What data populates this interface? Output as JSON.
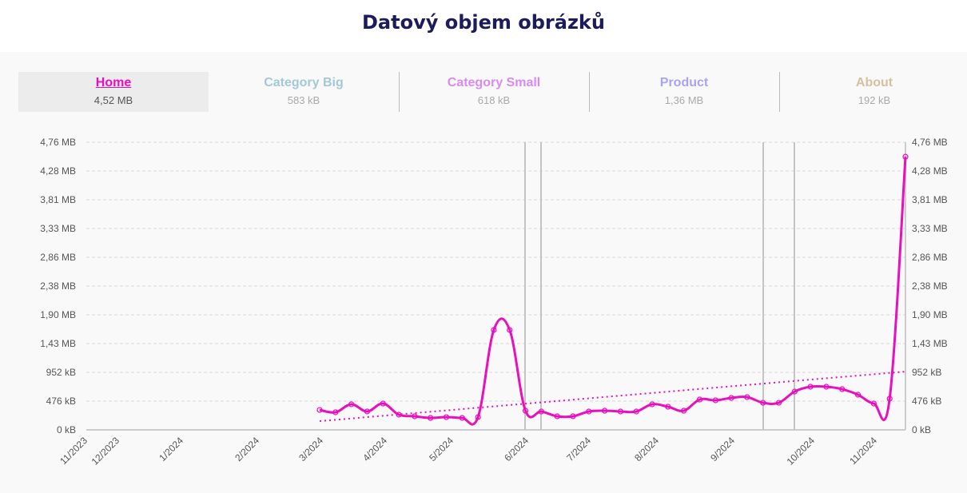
{
  "title": "Datový objem obrázků",
  "tabs": [
    {
      "label": "Home",
      "value": "4,52 MB",
      "color": "#e80fbf",
      "active": true
    },
    {
      "label": "Category Big",
      "value": "583 kB",
      "color": "#a3c9d6",
      "active": false
    },
    {
      "label": "Category Small",
      "value": "618 kB",
      "color": "#d98af2",
      "active": false
    },
    {
      "label": "Product",
      "value": "1,36 MB",
      "color": "#a9a2f7",
      "active": false
    },
    {
      "label": "About",
      "value": "192 kB",
      "color": "#d6c09e",
      "active": false
    }
  ],
  "chart_data": {
    "type": "line",
    "title": "",
    "xlabel": "",
    "ylabel": "",
    "unit": "kB",
    "ylim": [
      0,
      4760
    ],
    "y_ticks": [
      "0 kB",
      "476 kB",
      "952 kB",
      "1,43 MB",
      "1,90 MB",
      "2,38 MB",
      "2,86 MB",
      "3,33 MB",
      "3,81 MB",
      "4,28 MB",
      "4,76 MB"
    ],
    "x_ticks": [
      "11/2023",
      "12/2023",
      "1/2024",
      "2/2024",
      "3/2024",
      "4/2024",
      "5/2024",
      "6/2024",
      "7/2024",
      "8/2024",
      "9/2024",
      "10/2024",
      "11/2024"
    ],
    "grid": true,
    "series": [
      {
        "color": "#e80fbf",
        "values": [
          330,
          291,
          423,
          304,
          436,
          251,
          225,
          198,
          211,
          198,
          211,
          1653,
          1653,
          317,
          304,
          225,
          225,
          304,
          317,
          304,
          304,
          423,
          383,
          317,
          502,
          489,
          529,
          542,
          449,
          449,
          634,
          714,
          714,
          674,
          582,
          436,
          516,
          4520
        ]
      }
    ],
    "trendline": {
      "style": "dotted",
      "color": "#e80fbf",
      "start": 145,
      "end": 965
    },
    "annotations": {
      "type": "vertical-lines",
      "color": "#c4c4c4",
      "count": 4
    }
  }
}
